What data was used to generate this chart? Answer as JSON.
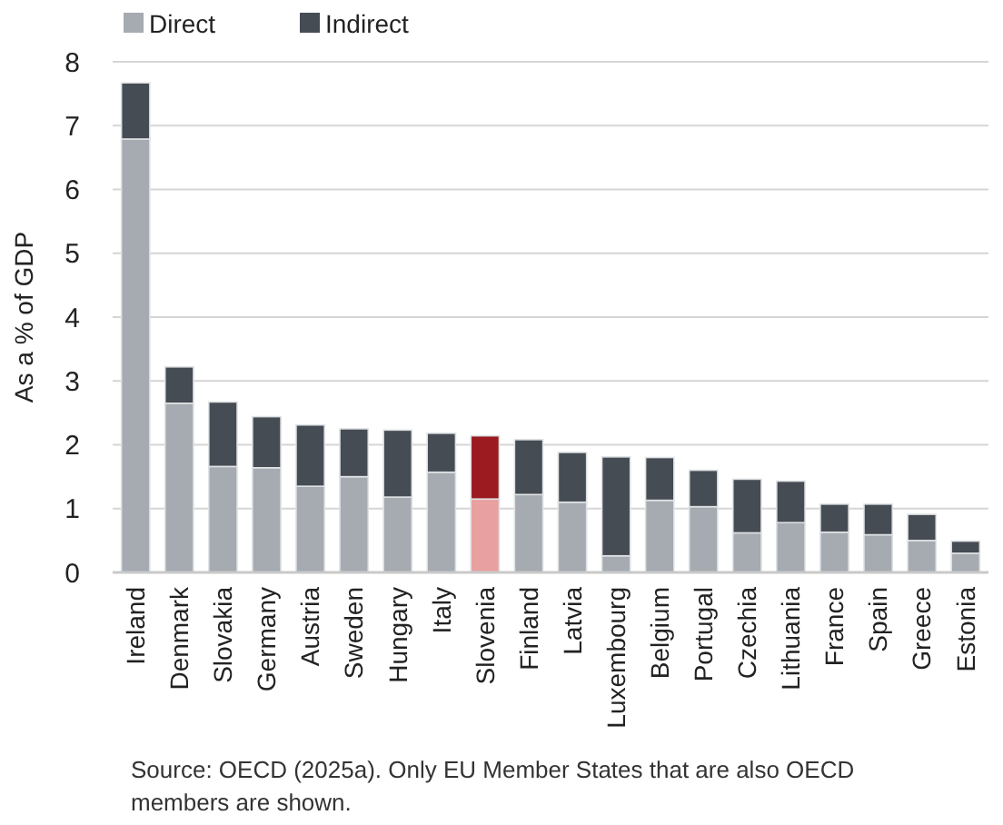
{
  "chart_data": {
    "type": "bar",
    "stacked": true,
    "ylabel": "As a % of GDP",
    "categories": [
      "Ireland",
      "Denmark",
      "Slovakia",
      "Germany",
      "Austria",
      "Sweden",
      "Hungary",
      "Italy",
      "Slovenia",
      "Finland",
      "Latvia",
      "Luxembourg",
      "Belgium",
      "Portugal",
      "Czechia",
      "Lithuania",
      "France",
      "Spain",
      "Greece",
      "Estonia"
    ],
    "series": [
      {
        "name": "Direct",
        "color": "#a5abb0",
        "colors": [
          "#a5abb0",
          "#a5abb0",
          "#a5abb0",
          "#a5abb0",
          "#a5abb0",
          "#a5abb0",
          "#a5abb0",
          "#a5abb0",
          "#e8a0a0",
          "#a5abb0",
          "#a5abb0",
          "#a5abb0",
          "#a5abb0",
          "#a5abb0",
          "#a5abb0",
          "#a5abb0",
          "#a5abb0",
          "#a5abb0",
          "#a5abb0",
          "#a5abb0"
        ],
        "values": [
          6.79,
          2.65,
          1.66,
          1.64,
          1.35,
          1.5,
          1.18,
          1.57,
          1.15,
          1.22,
          1.1,
          0.26,
          1.13,
          1.03,
          0.62,
          0.78,
          0.63,
          0.59,
          0.5,
          0.3
        ]
      },
      {
        "name": "Indirect",
        "color": "#464c53",
        "colors": [
          "#464c53",
          "#464c53",
          "#464c53",
          "#464c53",
          "#464c53",
          "#464c53",
          "#464c53",
          "#464c53",
          "#9b1b20",
          "#464c53",
          "#464c53",
          "#464c53",
          "#464c53",
          "#464c53",
          "#464c53",
          "#464c53",
          "#464c53",
          "#464c53",
          "#464c53",
          "#464c53"
        ],
        "values": [
          0.88,
          0.57,
          1.01,
          0.8,
          0.96,
          0.75,
          1.05,
          0.61,
          0.99,
          0.86,
          0.78,
          1.55,
          0.67,
          0.57,
          0.84,
          0.65,
          0.44,
          0.48,
          0.41,
          0.19
        ]
      }
    ],
    "ylim": [
      0,
      8
    ],
    "yticks": [
      0,
      1,
      2,
      3,
      4,
      5,
      6,
      7,
      8
    ],
    "grid": "y",
    "legend": "top left",
    "annotations": [
      "Source: OECD (2025a). Only EU Member States that are also OECD members are shown."
    ]
  }
}
